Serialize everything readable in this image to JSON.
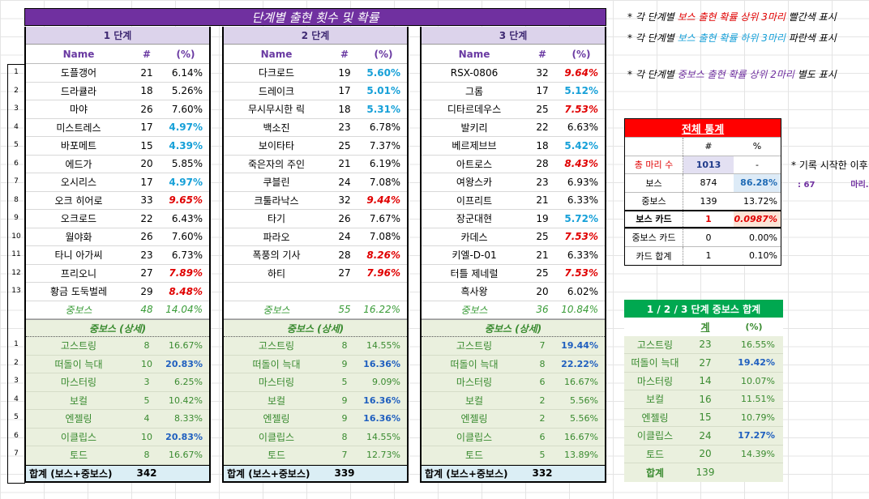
{
  "title": "단계별 출현 횟수 및 확률",
  "columns": {
    "name": "Name",
    "count": "#",
    "pct": "(%)"
  },
  "stages": [
    {
      "header": "1 단계",
      "bosses": [
        {
          "name": "도플갱어",
          "count": "21",
          "pct": "6.14%",
          "mark": ""
        },
        {
          "name": "드라큘라",
          "count": "18",
          "pct": "5.26%",
          "mark": ""
        },
        {
          "name": "마야",
          "count": "26",
          "pct": "7.60%",
          "mark": ""
        },
        {
          "name": "미스트레스",
          "count": "17",
          "pct": "4.97%",
          "mark": "low"
        },
        {
          "name": "바포메트",
          "count": "15",
          "pct": "4.39%",
          "mark": "low"
        },
        {
          "name": "에드가",
          "count": "20",
          "pct": "5.85%",
          "mark": ""
        },
        {
          "name": "오시리스",
          "count": "17",
          "pct": "4.97%",
          "mark": "low"
        },
        {
          "name": "오크 히어로",
          "count": "33",
          "pct": "9.65%",
          "mark": "high"
        },
        {
          "name": "오크로드",
          "count": "22",
          "pct": "6.43%",
          "mark": ""
        },
        {
          "name": "월야화",
          "count": "26",
          "pct": "7.60%",
          "mark": ""
        },
        {
          "name": "타니 아가씨",
          "count": "23",
          "pct": "6.73%",
          "mark": ""
        },
        {
          "name": "프리오니",
          "count": "27",
          "pct": "7.89%",
          "mark": "high"
        },
        {
          "name": "황금 도둑벌레",
          "count": "29",
          "pct": "8.48%",
          "mark": "high"
        }
      ],
      "mid": {
        "label": "중보스",
        "count": "48",
        "pct": "14.04%"
      },
      "detail_label": "중보스 (상세)",
      "details": [
        {
          "name": "고스트링",
          "count": "8",
          "pct": "16.67%",
          "mark": ""
        },
        {
          "name": "떠돌이 늑대",
          "count": "10",
          "pct": "20.83%",
          "mark": "top"
        },
        {
          "name": "마스터링",
          "count": "3",
          "pct": "6.25%",
          "mark": ""
        },
        {
          "name": "보컬",
          "count": "5",
          "pct": "10.42%",
          "mark": ""
        },
        {
          "name": "엔젤링",
          "count": "4",
          "pct": "8.33%",
          "mark": ""
        },
        {
          "name": "이클립스",
          "count": "10",
          "pct": "20.83%",
          "mark": "top"
        },
        {
          "name": "토드",
          "count": "8",
          "pct": "16.67%",
          "mark": ""
        }
      ],
      "total_label": "합계 (보스+중보스)",
      "total": "342"
    },
    {
      "header": "2 단계",
      "bosses": [
        {
          "name": "다크로드",
          "count": "19",
          "pct": "5.60%",
          "mark": "low"
        },
        {
          "name": "드레이크",
          "count": "17",
          "pct": "5.01%",
          "mark": "low"
        },
        {
          "name": "무시무시한 릭",
          "count": "18",
          "pct": "5.31%",
          "mark": "low"
        },
        {
          "name": "백소진",
          "count": "23",
          "pct": "6.78%",
          "mark": ""
        },
        {
          "name": "보이타타",
          "count": "25",
          "pct": "7.37%",
          "mark": ""
        },
        {
          "name": "죽은자의 주인",
          "count": "21",
          "pct": "6.19%",
          "mark": ""
        },
        {
          "name": "쿠블린",
          "count": "24",
          "pct": "7.08%",
          "mark": ""
        },
        {
          "name": "크툴라낙스",
          "count": "32",
          "pct": "9.44%",
          "mark": "high"
        },
        {
          "name": "타기",
          "count": "26",
          "pct": "7.67%",
          "mark": ""
        },
        {
          "name": "파라오",
          "count": "24",
          "pct": "7.08%",
          "mark": ""
        },
        {
          "name": "폭풍의 기사",
          "count": "28",
          "pct": "8.26%",
          "mark": "high"
        },
        {
          "name": "하티",
          "count": "27",
          "pct": "7.96%",
          "mark": "high"
        },
        {
          "name": "",
          "count": "",
          "pct": "",
          "mark": ""
        }
      ],
      "mid": {
        "label": "중보스",
        "count": "55",
        "pct": "16.22%"
      },
      "detail_label": "중보스 (상세)",
      "details": [
        {
          "name": "고스트링",
          "count": "8",
          "pct": "14.55%",
          "mark": ""
        },
        {
          "name": "떠돌이 늑대",
          "count": "9",
          "pct": "16.36%",
          "mark": "top"
        },
        {
          "name": "마스터링",
          "count": "5",
          "pct": "9.09%",
          "mark": ""
        },
        {
          "name": "보컬",
          "count": "9",
          "pct": "16.36%",
          "mark": "top"
        },
        {
          "name": "엔젤링",
          "count": "9",
          "pct": "16.36%",
          "mark": "top"
        },
        {
          "name": "이클립스",
          "count": "8",
          "pct": "14.55%",
          "mark": ""
        },
        {
          "name": "토드",
          "count": "7",
          "pct": "12.73%",
          "mark": ""
        }
      ],
      "total_label": "합계 (보스+중보스)",
      "total": "339"
    },
    {
      "header": "3 단계",
      "bosses": [
        {
          "name": "RSX-0806",
          "count": "32",
          "pct": "9.64%",
          "mark": "high"
        },
        {
          "name": "그롬",
          "count": "17",
          "pct": "5.12%",
          "mark": "low"
        },
        {
          "name": "디타르데우스",
          "count": "25",
          "pct": "7.53%",
          "mark": "high"
        },
        {
          "name": "발키리",
          "count": "22",
          "pct": "6.63%",
          "mark": ""
        },
        {
          "name": "베르제브브",
          "count": "18",
          "pct": "5.42%",
          "mark": "low"
        },
        {
          "name": "아트로스",
          "count": "28",
          "pct": "8.43%",
          "mark": "high"
        },
        {
          "name": "여왕스카",
          "count": "23",
          "pct": "6.93%",
          "mark": ""
        },
        {
          "name": "이프리트",
          "count": "21",
          "pct": "6.33%",
          "mark": ""
        },
        {
          "name": "장군대현",
          "count": "19",
          "pct": "5.72%",
          "mark": "low"
        },
        {
          "name": "카데스",
          "count": "25",
          "pct": "7.53%",
          "mark": "high"
        },
        {
          "name": "키엘-D-01",
          "count": "21",
          "pct": "6.33%",
          "mark": ""
        },
        {
          "name": "터틀 제네럴",
          "count": "25",
          "pct": "7.53%",
          "mark": "high"
        },
        {
          "name": "흑사왕",
          "count": "20",
          "pct": "6.02%",
          "mark": ""
        }
      ],
      "mid": {
        "label": "중보스",
        "count": "36",
        "pct": "10.84%"
      },
      "detail_label": "중보스 (상세)",
      "details": [
        {
          "name": "고스트링",
          "count": "7",
          "pct": "19.44%",
          "mark": "top"
        },
        {
          "name": "떠돌이 늑대",
          "count": "8",
          "pct": "22.22%",
          "mark": "top"
        },
        {
          "name": "마스터링",
          "count": "6",
          "pct": "16.67%",
          "mark": ""
        },
        {
          "name": "보컬",
          "count": "2",
          "pct": "5.56%",
          "mark": ""
        },
        {
          "name": "엔젤링",
          "count": "2",
          "pct": "5.56%",
          "mark": ""
        },
        {
          "name": "이클립스",
          "count": "6",
          "pct": "16.67%",
          "mark": ""
        },
        {
          "name": "토드",
          "count": "5",
          "pct": "13.89%",
          "mark": ""
        }
      ],
      "total_label": "합계 (보스+중보스)",
      "total": "332"
    }
  ],
  "boss_row_numbers": [
    "1",
    "2",
    "3",
    "4",
    "5",
    "6",
    "7",
    "8",
    "9",
    "10",
    "11",
    "12",
    "13"
  ],
  "detail_row_numbers": [
    "1",
    "2",
    "3",
    "4",
    "5",
    "6",
    "7"
  ],
  "notes": {
    "n1_prefix": "* 각 단계별 ",
    "n1_colored": "보스 출현 확률 상위 3마리",
    "n1_suffix": " 빨간색 표시",
    "n2_prefix": "* 각 단계별 ",
    "n2_colored": "보스 출현 확률 하위 3마리",
    "n2_suffix": " 파란색 표시",
    "n3_prefix": "* 각 단계별 ",
    "n3_colored": "중보스 출현 확률 상위 2마리",
    "n3_suffix": " 별도 표시"
  },
  "overall": {
    "title": "전체 통계",
    "col_count": "#",
    "col_pct": "%",
    "rows": [
      {
        "label": "총 마리 수",
        "count": "1013",
        "pct": "-"
      },
      {
        "label": "보스",
        "count": "874",
        "pct": "86.28%"
      },
      {
        "label": "중보스",
        "count": "139",
        "pct": "13.72%"
      },
      {
        "label": "보스 카드",
        "count": "1",
        "pct": "0.0987%"
      },
      {
        "label": "중보스 카드",
        "count": "0",
        "pct": "0.00%"
      },
      {
        "label": "카드 합계",
        "count": "1",
        "pct": "0.10%"
      }
    ]
  },
  "side_note": {
    "line1": "* 기록 시작한 이후",
    "line2_a": ": 67",
    "line2_b": "마리.. ㅠ"
  },
  "combined": {
    "title": "1 / 2 / 3 단계 중보스 합계",
    "col_count": "계",
    "col_pct": "(%)",
    "rows": [
      {
        "name": "고스트링",
        "count": "23",
        "pct": "16.55%",
        "mark": ""
      },
      {
        "name": "떠돌이 늑대",
        "count": "27",
        "pct": "19.42%",
        "mark": "top"
      },
      {
        "name": "마스터링",
        "count": "14",
        "pct": "10.07%",
        "mark": ""
      },
      {
        "name": "보컬",
        "count": "16",
        "pct": "11.51%",
        "mark": ""
      },
      {
        "name": "엔젤링",
        "count": "15",
        "pct": "10.79%",
        "mark": ""
      },
      {
        "name": "이클립스",
        "count": "24",
        "pct": "17.27%",
        "mark": "top"
      },
      {
        "name": "토드",
        "count": "20",
        "pct": "14.39%",
        "mark": ""
      }
    ],
    "total_label": "합계",
    "total": "139"
  },
  "colors": {
    "title_bg": "#7030a0",
    "high": "#e00000",
    "low": "#16a0d8",
    "detail_bg": "#eaf0de",
    "total_bg": "#dbeef5",
    "stats_head": "#ff0000",
    "combined_head": "#00a850"
  }
}
